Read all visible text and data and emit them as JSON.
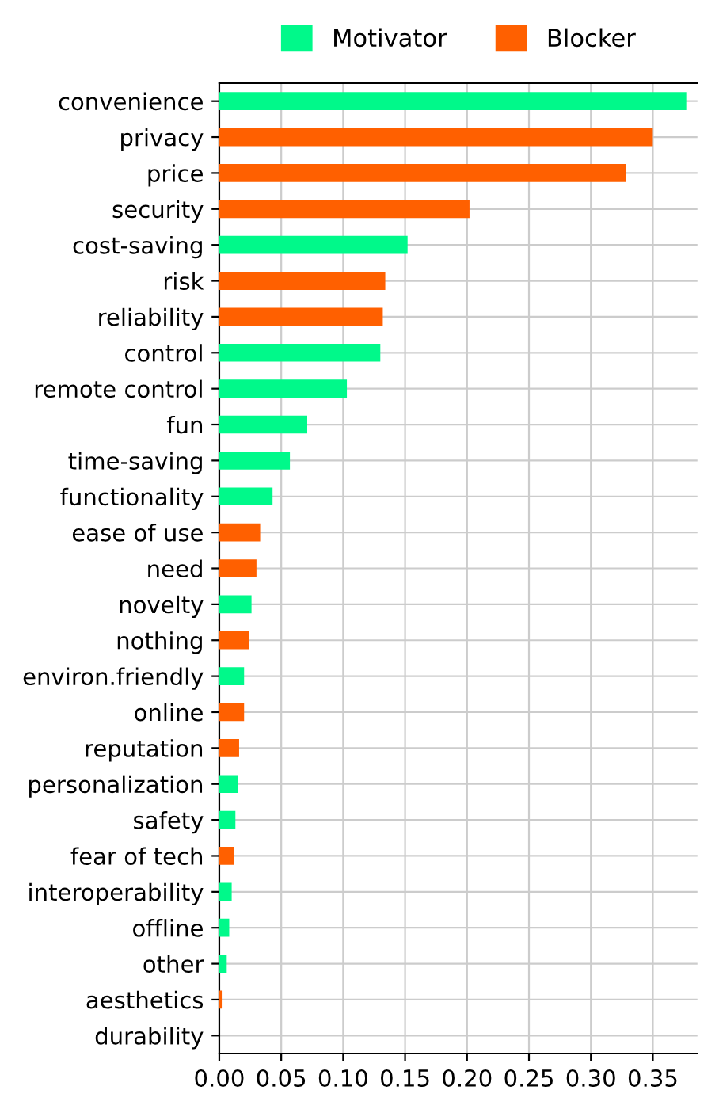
{
  "chart_data": {
    "type": "bar",
    "orientation": "horizontal",
    "categories": [
      "convenience",
      "privacy",
      "price",
      "security",
      "cost-saving",
      "risk",
      "reliability",
      "control",
      "remote control",
      "fun",
      "time-saving",
      "functionality",
      "ease of use",
      "need",
      "novelty",
      "nothing",
      "environ.friendly",
      "online",
      "reputation",
      "personalization",
      "safety",
      "fear of tech",
      "interoperability",
      "offline",
      "other",
      "aesthetics",
      "durability"
    ],
    "series": [
      {
        "name": "Motivator",
        "color": "#00f98a",
        "values": [
          0.377,
          null,
          null,
          null,
          0.152,
          null,
          null,
          0.13,
          0.103,
          0.071,
          0.057,
          0.043,
          null,
          null,
          0.026,
          null,
          0.02,
          null,
          null,
          0.015,
          0.013,
          null,
          0.01,
          0.008,
          0.006,
          null,
          0
        ]
      },
      {
        "name": "Blocker",
        "color": "#ff6000",
        "values": [
          null,
          0.35,
          0.328,
          0.202,
          null,
          0.134,
          0.132,
          null,
          null,
          null,
          null,
          null,
          0.033,
          0.03,
          null,
          0.024,
          null,
          0.02,
          0.016,
          null,
          null,
          0.012,
          null,
          null,
          null,
          0.002,
          null
        ]
      }
    ],
    "xlim": [
      0,
      0.386
    ],
    "xticks": [
      {
        "value": 0,
        "label": "0.00"
      },
      {
        "value": 0.05,
        "label": "0.05"
      },
      {
        "value": 0.1,
        "label": "0.10"
      },
      {
        "value": 0.15,
        "label": "0.15"
      },
      {
        "value": 0.2,
        "label": "0.20"
      },
      {
        "value": 0.25,
        "label": "0.25"
      },
      {
        "value": 0.3,
        "label": "0.30"
      },
      {
        "value": 0.35,
        "label": "0.35"
      }
    ],
    "grid": true,
    "legend": "top"
  }
}
